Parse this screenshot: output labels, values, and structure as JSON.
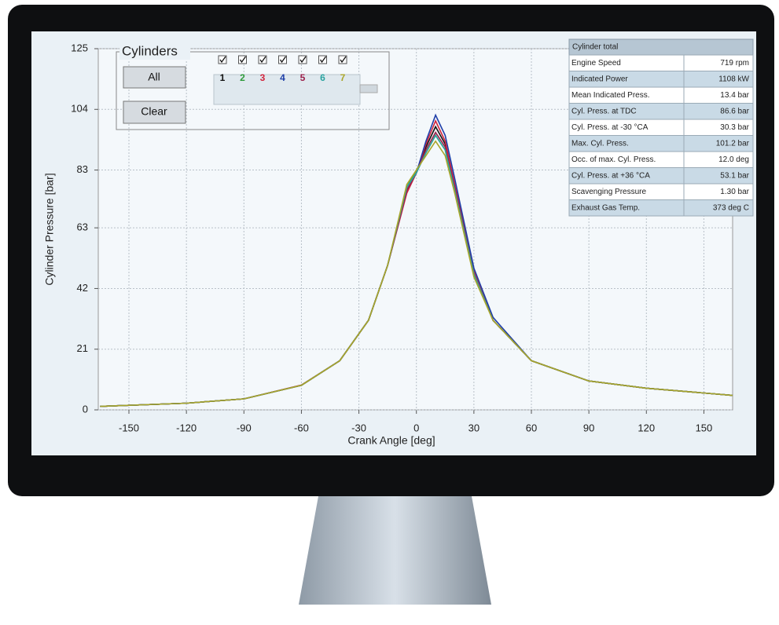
{
  "chart_data": {
    "type": "line",
    "x_label": "Crank Angle [deg]",
    "y_label": "Cylinder Pressure  [bar]",
    "x": [
      -165,
      -120,
      -90,
      -60,
      -40,
      -25,
      -15,
      -5,
      0,
      5,
      10,
      15,
      20,
      30,
      40,
      60,
      90,
      120,
      165
    ],
    "xlim": [
      -166,
      165
    ],
    "ylim": [
      0,
      125
    ],
    "xticks": [
      -150,
      -120,
      -90,
      -60,
      -30,
      0,
      30,
      60,
      90,
      120,
      150
    ],
    "yticks": [
      0,
      21,
      42,
      63,
      83,
      104,
      125
    ],
    "grid": true,
    "series": [
      {
        "name": "1",
        "color": "#111111",
        "values": [
          1.2,
          2.3,
          3.8,
          8.5,
          17,
          31,
          50,
          76,
          82,
          91,
          98,
          92,
          77,
          48,
          31,
          17,
          10,
          7.5,
          5
        ]
      },
      {
        "name": "2",
        "color": "#2e9a3a",
        "values": [
          1.2,
          2.3,
          3.8,
          8.5,
          17,
          31,
          50,
          77,
          83,
          89,
          95,
          90,
          76,
          47,
          31,
          17,
          10,
          7.5,
          5
        ]
      },
      {
        "name": "3",
        "color": "#d2243c",
        "values": [
          1.2,
          2.3,
          3.8,
          8.6,
          17,
          31,
          50,
          75,
          82,
          92,
          100,
          93,
          78,
          48,
          31,
          17,
          10,
          7.5,
          5
        ]
      },
      {
        "name": "4",
        "color": "#1f3fa8",
        "values": [
          1.2,
          2.3,
          3.8,
          8.5,
          17,
          31,
          50,
          76,
          82,
          93,
          102,
          95,
          80,
          49,
          32,
          17,
          10,
          7.5,
          5
        ]
      },
      {
        "name": "5",
        "color": "#9b1f4a",
        "values": [
          1.2,
          2.3,
          3.8,
          8.5,
          17,
          31,
          50,
          76,
          82,
          90,
          96,
          91,
          77,
          47,
          31,
          17,
          10,
          7.5,
          5
        ]
      },
      {
        "name": "6",
        "color": "#2aa3a0",
        "values": [
          1.2,
          2.3,
          3.8,
          8.5,
          17,
          31,
          50,
          77,
          82,
          89,
          95,
          90,
          76,
          47,
          31,
          17,
          10,
          7.5,
          5
        ]
      },
      {
        "name": "7",
        "color": "#a9a52a",
        "values": [
          1.2,
          2.3,
          3.8,
          8.5,
          17,
          31,
          50,
          78,
          83,
          88,
          93,
          88,
          75,
          46,
          31,
          17,
          10,
          7.5,
          5
        ]
      }
    ]
  },
  "panel": {
    "title": "Cylinders",
    "buttons": [
      "All",
      "Clear"
    ]
  },
  "table": {
    "header": "Cylinder total",
    "rows": [
      [
        "Engine Speed",
        "719 rpm"
      ],
      [
        "Indicated Power",
        "1108 kW"
      ],
      [
        "Mean Indicated Press.",
        "13.4 bar"
      ],
      [
        "Cyl. Press. at TDC",
        "86.6 bar"
      ],
      [
        "Cyl. Press. at -30 °CA",
        "30.3 bar"
      ],
      [
        "Max. Cyl. Press.",
        "101.2 bar"
      ],
      [
        "Occ. of max. Cyl. Press.",
        "12.0 deg"
      ],
      [
        "Cyl. Press. at +36 °CA",
        "53.1 bar"
      ],
      [
        "Scavenging Pressure",
        "1.30 bar"
      ],
      [
        "Exhaust Gas Temp.",
        "373 deg C"
      ]
    ]
  }
}
